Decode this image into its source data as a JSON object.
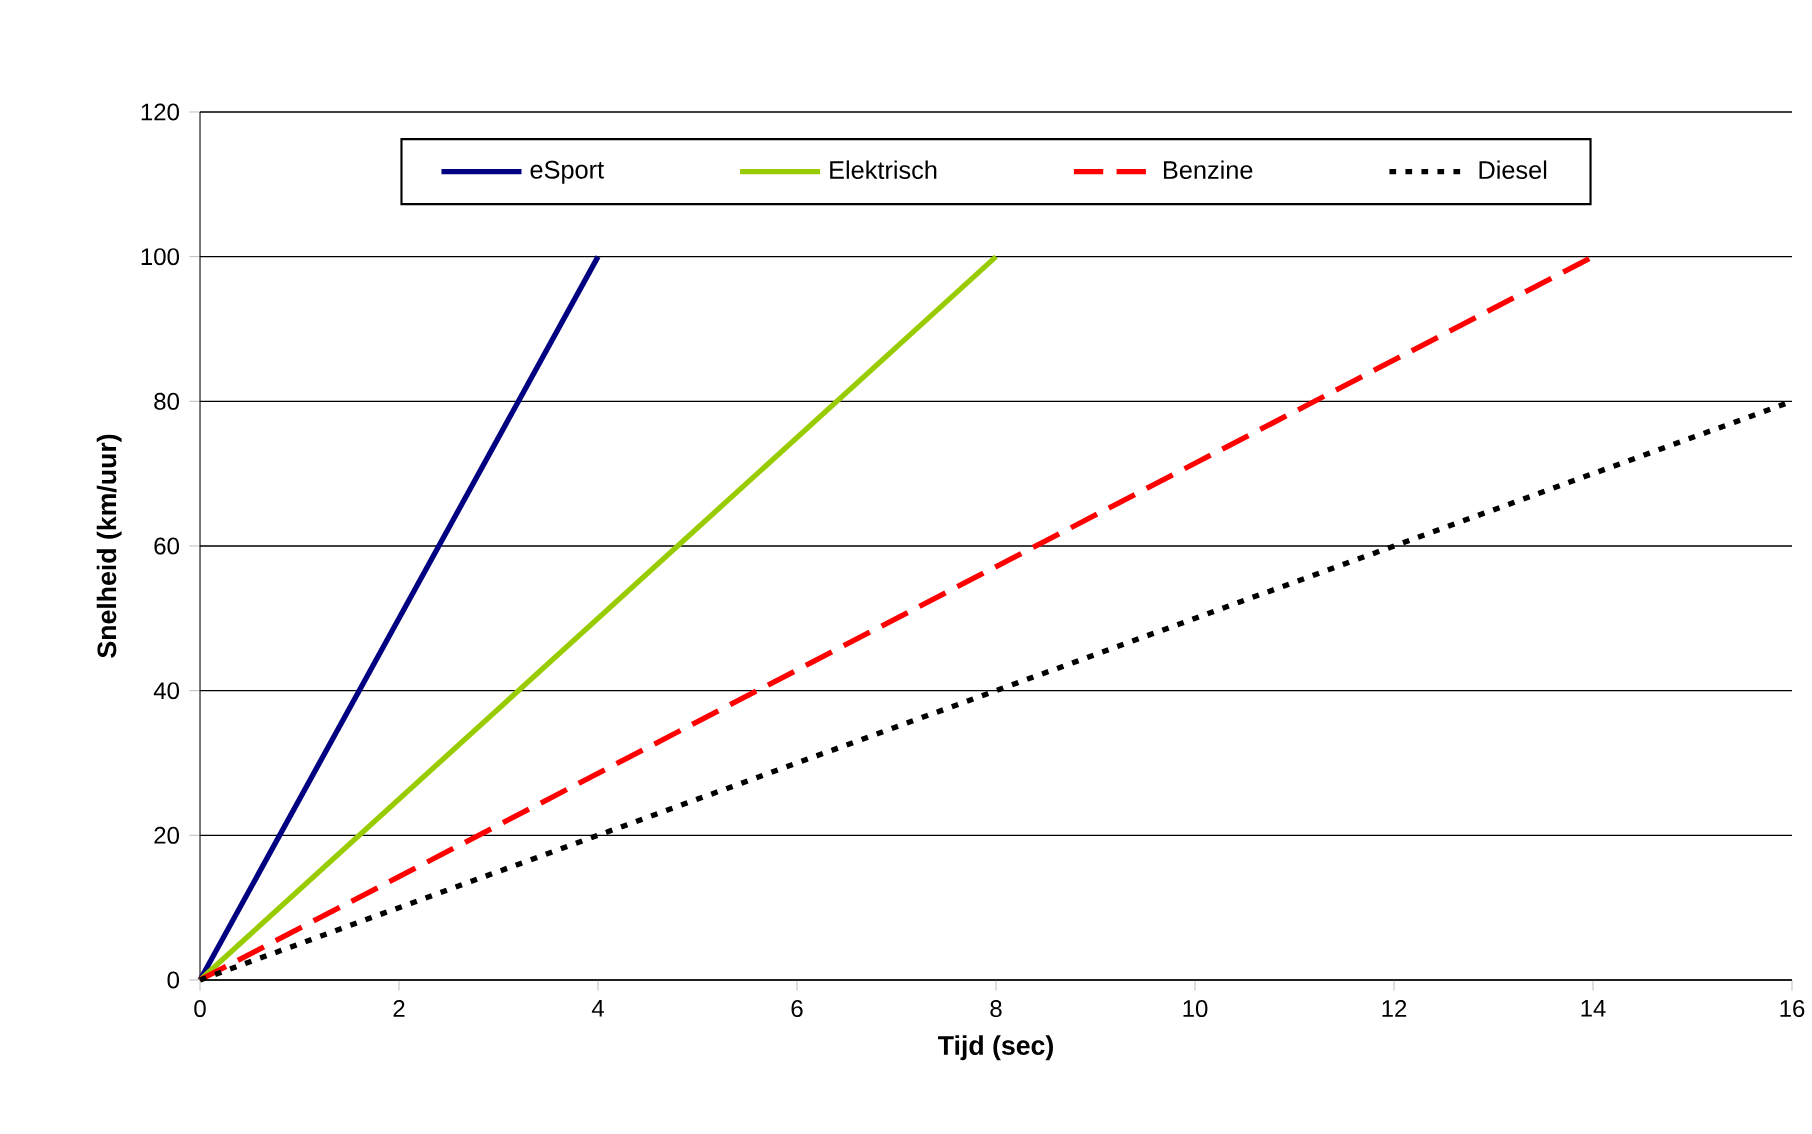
{
  "chart_data": {
    "type": "line",
    "xlabel": "Tijd (sec)",
    "ylabel": "Snelheid (km/uur)",
    "series": [
      {
        "name": "eSport",
        "color": "#000080",
        "line_style": "solid",
        "x": [
          0,
          4
        ],
        "values": [
          0,
          100
        ]
      },
      {
        "name": "Elektrisch",
        "color": "#99cc00",
        "line_style": "solid",
        "x": [
          0,
          8
        ],
        "values": [
          0,
          100
        ]
      },
      {
        "name": "Benzine",
        "color": "#ff0000",
        "line_style": "dashed",
        "x": [
          0,
          14
        ],
        "values": [
          0,
          100
        ]
      },
      {
        "name": "Diesel",
        "color": "#000000",
        "line_style": "dotted",
        "x": [
          0,
          16
        ],
        "values": [
          0,
          80
        ]
      }
    ],
    "xlim": [
      0,
      16
    ],
    "ylim": [
      0,
      120
    ],
    "xticks": [
      0,
      2,
      4,
      6,
      8,
      10,
      12,
      14,
      16
    ],
    "yticks": [
      0,
      20,
      40,
      60,
      80,
      100,
      120
    ],
    "grid": "y",
    "legend": "top",
    "marker": "none"
  }
}
